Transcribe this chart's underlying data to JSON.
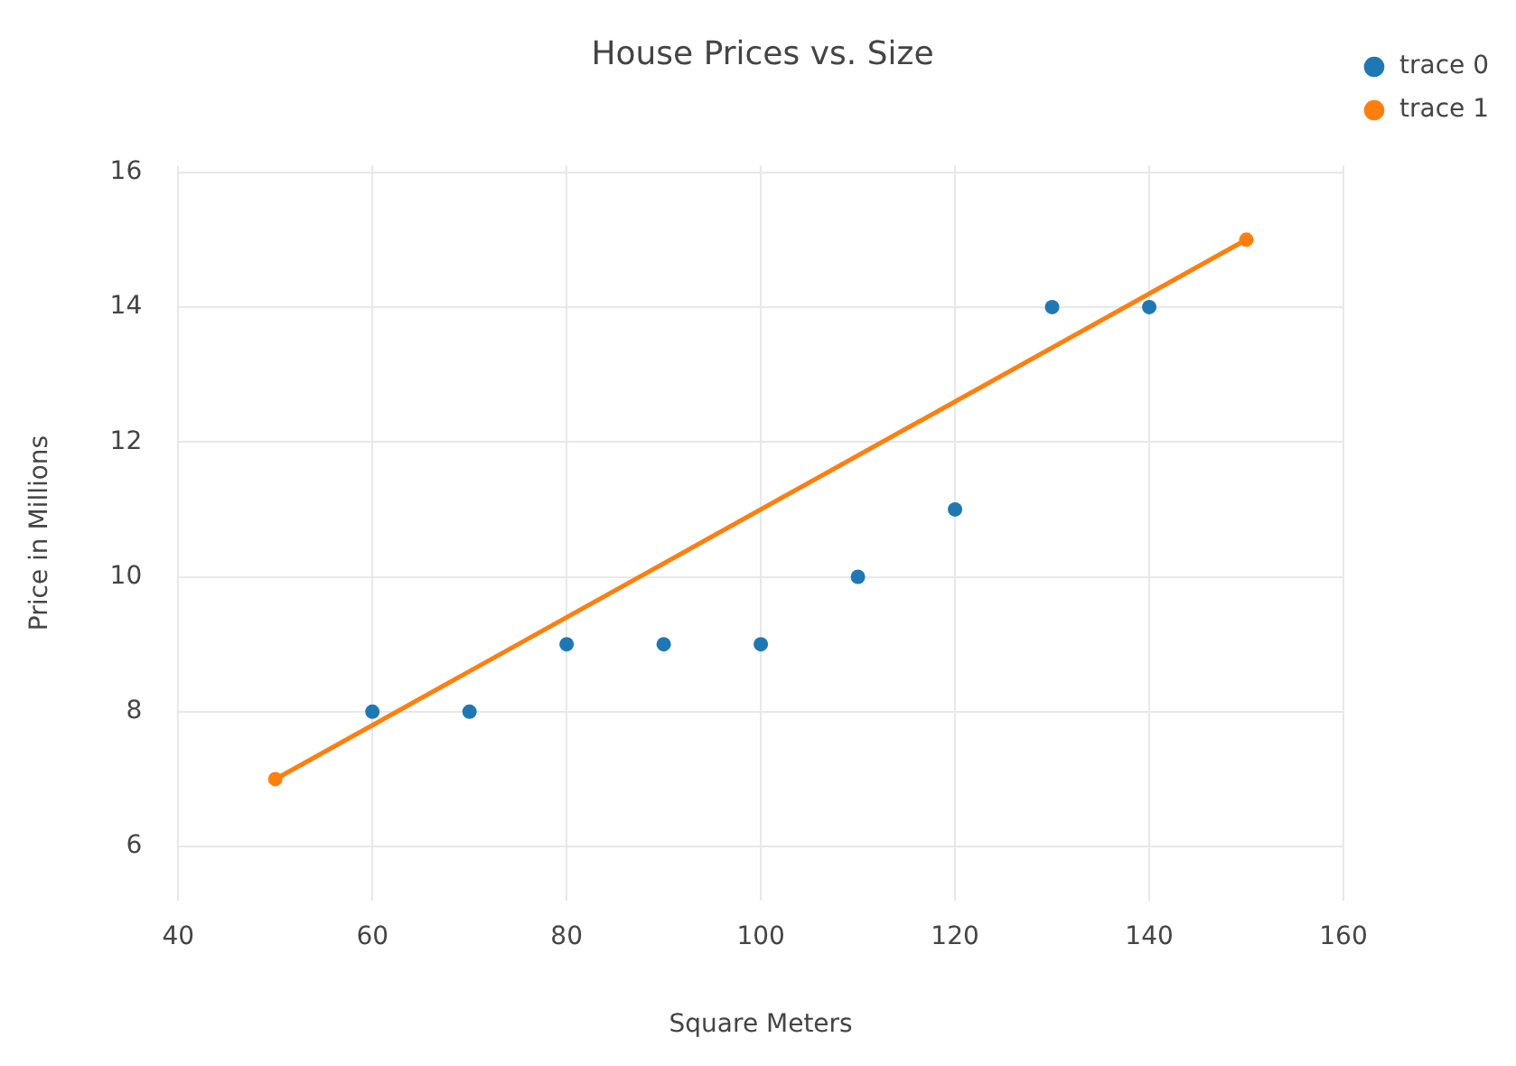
{
  "chart_data": {
    "type": "scatter",
    "title": "House Prices vs. Size",
    "xlabel": "Square Meters",
    "ylabel": "Price in Millions",
    "x": [
      60,
      70,
      80,
      90,
      100,
      110,
      120,
      130,
      140
    ],
    "series": [
      {
        "name": "trace 0",
        "color": "#1f77b4",
        "values": [
          8,
          8,
          9,
          9,
          9,
          10,
          11,
          14,
          14
        ]
      },
      {
        "name": "trace 1",
        "type": "line",
        "color": "#ff7f0e",
        "x": [
          50,
          150
        ],
        "values": [
          7,
          15
        ]
      }
    ],
    "xlim": [
      40,
      160
    ],
    "xticks": [
      40,
      60,
      80,
      100,
      120,
      140,
      160
    ],
    "ylim": [
      5.2,
      16.1
    ],
    "yticks": [
      6,
      8,
      10,
      12,
      14,
      16
    ],
    "grid": true,
    "legend": "top right",
    "marker": "circle",
    "line_style": "solid"
  }
}
